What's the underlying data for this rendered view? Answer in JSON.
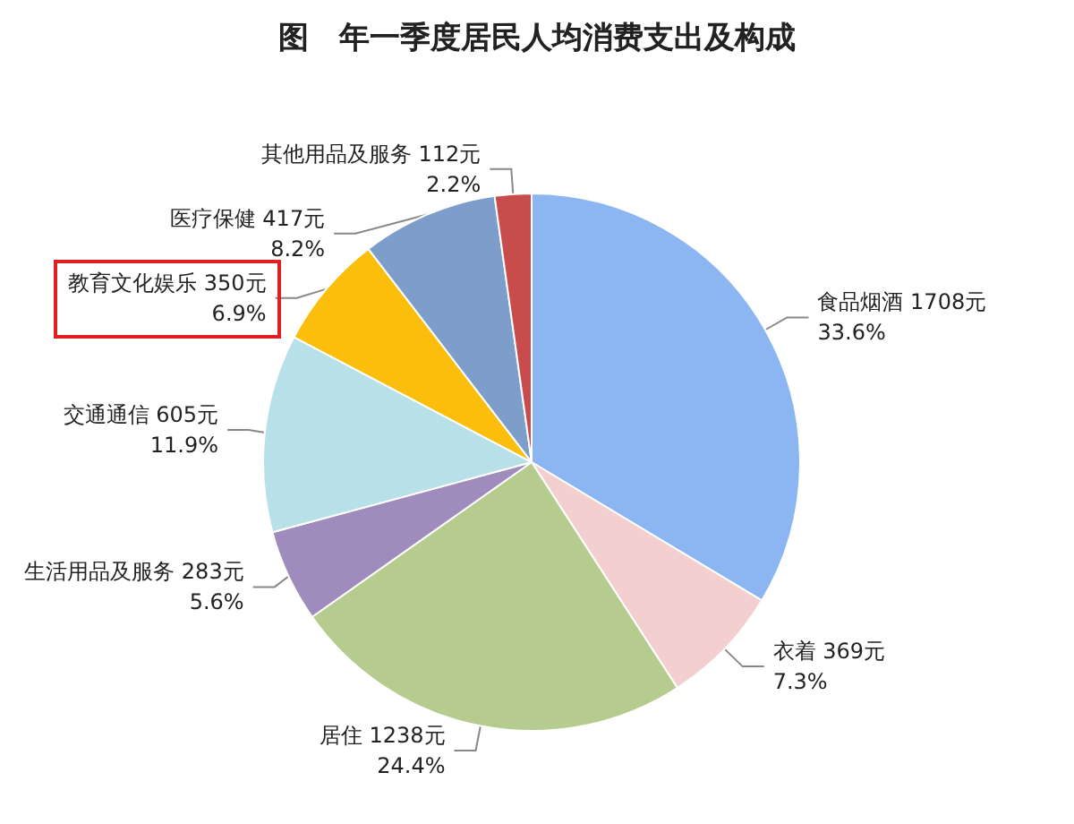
{
  "chart_data": {
    "type": "pie",
    "title": "图　年一季度居民人均消费支出及构成",
    "categories": [
      "食品烟酒",
      "衣着",
      "居住",
      "生活用品及服务",
      "交通通信",
      "教育文化娱乐",
      "医疗保健",
      "其他用品及服务"
    ],
    "values": [
      1708,
      369,
      1238,
      283,
      605,
      350,
      417,
      112
    ],
    "value_labels": [
      "1708元\n33.6%",
      "369元\n7.3%",
      "1238元\n24.4%",
      "283元\n5.6%",
      "605元\n11.9%",
      "350元\n6.9%",
      "417元\n8.2%",
      "112元\n2.2%"
    ],
    "colors": [
      "#8cb6f2",
      "#f3cfcf",
      "#b5cc8e",
      "#a08cbc",
      "#b8e0e8",
      "#fbbe0c",
      "#7d9ecb",
      "#c94c4c"
    ],
    "legend": false
  }
}
